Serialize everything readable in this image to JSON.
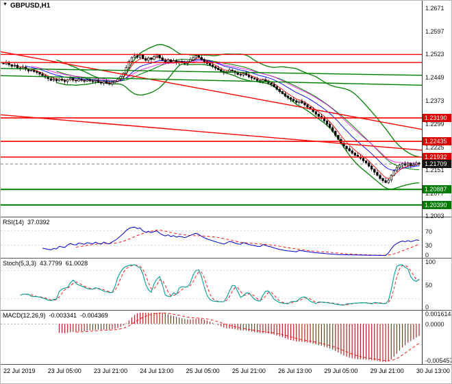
{
  "ui": {
    "symbol_label": "GBPUSD,H1",
    "collapse_icon": "▼"
  },
  "colors": {
    "bands": "#008000",
    "levels_red": "#ff0000",
    "badge_red": "#dd0000",
    "badge_green": "#007a00",
    "badge_black": "#111111",
    "rsi_line": "#0000cc",
    "stoch_line": "#009e96",
    "signal_line": "#ff0000",
    "macd_hist": "#b22222"
  },
  "chart_data": {
    "type": "candlestick",
    "title": "GBPUSD,H1",
    "symbol": "GBPUSD",
    "timeframe": "H1",
    "x_labels": [
      "22 Jul 2019",
      "23 Jul 05:00",
      "23 Jul 21:00",
      "24 Jul 13:00",
      "25 Jul 05:00",
      "25 Jul 21:00",
      "26 Jul 13:00",
      "29 Jul 05:00",
      "29 Jul 21:00",
      "30 Jul 13:00"
    ],
    "price_range": {
      "max": 1.2696,
      "min": 1.1999
    },
    "price_ticks": [
      "1.2671",
      "1.2597",
      "1.2523",
      "1.2449",
      "1.2373",
      "1.2299",
      "1.2225",
      "1.2151",
      "1.2077",
      "1.2003"
    ],
    "closes": [
      1.2493,
      1.2498,
      1.249,
      1.2485,
      1.2488,
      1.248,
      1.2478,
      1.2482,
      1.2475,
      1.247,
      1.2472,
      1.2468,
      1.2465,
      1.246,
      1.2455,
      1.245,
      1.2445,
      1.244,
      1.2443,
      1.2438,
      1.2444,
      1.244,
      1.2436,
      1.2442,
      1.2446,
      1.244,
      1.2438,
      1.2443,
      1.244,
      1.2437,
      1.2441,
      1.2438,
      1.2436,
      1.244,
      1.2434,
      1.2431,
      1.2436,
      1.243,
      1.2428,
      1.2433,
      1.2437,
      1.2443,
      1.2452,
      1.2463,
      1.2481,
      1.2501,
      1.2513,
      1.2519,
      1.2514,
      1.2521,
      1.251,
      1.2504,
      1.2512,
      1.2507,
      1.2516,
      1.2521,
      1.2512,
      1.2504,
      1.2499,
      1.2506,
      1.2498,
      1.2503,
      1.2496,
      1.2501,
      1.2498,
      1.2494,
      1.25,
      1.2506,
      1.2513,
      1.2519,
      1.2514,
      1.2507,
      1.25,
      1.2494,
      1.2489,
      1.2484,
      1.2479,
      1.2474,
      1.2469,
      1.2464,
      1.2468,
      1.2473,
      1.247,
      1.2464,
      1.2459,
      1.2457,
      1.2462,
      1.2457,
      1.2451,
      1.2447,
      1.2444,
      1.2439,
      1.2437,
      1.2442,
      1.2437,
      1.2431,
      1.2427,
      1.2419,
      1.2411,
      1.2404,
      1.2397,
      1.2389,
      1.2384,
      1.2379,
      1.2374,
      1.2369,
      1.2372,
      1.2367,
      1.2361,
      1.2354,
      1.2347,
      1.2339,
      1.2331,
      1.2324,
      1.2317,
      1.2309,
      1.2299,
      1.2288,
      1.2276,
      1.2263,
      1.225,
      1.2238,
      1.2228,
      1.222,
      1.2213,
      1.2206,
      1.2199,
      1.2194,
      1.2189,
      1.2181,
      1.2174,
      1.2164,
      1.2154,
      1.2144,
      1.2134,
      1.2124,
      1.2117,
      1.2111,
      1.2119,
      1.2134,
      1.2149,
      1.2159,
      1.2167,
      1.2172,
      1.2167,
      1.2173,
      1.2165,
      1.2169,
      1.2174,
      1.2171
    ],
    "current_price": 1.21709,
    "price_badges": [
      {
        "value": "1.23190",
        "price": 1.2319,
        "color": "red",
        "current": false
      },
      {
        "value": "1.22435",
        "price": 1.22435,
        "color": "red",
        "current": false
      },
      {
        "value": "1.21932",
        "price": 1.21932,
        "color": "red",
        "current": false
      },
      {
        "value": "1.21709",
        "price": 1.21709,
        "color": "black",
        "current": true
      },
      {
        "value": "1.20887",
        "price": 1.20887,
        "color": "green",
        "current": false
      },
      {
        "value": "1.20390",
        "price": 1.2039,
        "color": "green",
        "current": false
      }
    ],
    "h_lines": [
      {
        "price": 1.2523,
        "color": "red",
        "width": 1.4
      },
      {
        "price": 1.2497,
        "color": "red",
        "width": 1.4
      },
      {
        "price": 1.2319,
        "color": "red",
        "width": 1.6
      },
      {
        "price": 1.22435,
        "color": "red",
        "width": 1.6
      },
      {
        "price": 1.21932,
        "color": "red",
        "width": 1.6
      },
      {
        "price": 1.20887,
        "color": "green",
        "width": 2
      },
      {
        "price": 1.2039,
        "color": "green",
        "width": 2
      }
    ],
    "trend_lines": [
      {
        "p1": 1.2532,
        "p2": 1.2282,
        "color": "red"
      },
      {
        "p1": 1.2329,
        "p2": 1.2215,
        "color": "red"
      },
      {
        "p1": 1.2478,
        "p2": 1.2456,
        "color": "green"
      },
      {
        "p1": 1.2455,
        "p2": 1.2424,
        "color": "green"
      }
    ],
    "indicators": {
      "rsi": {
        "name": "RSI(14)",
        "value": "37.0392",
        "levels": [
          70,
          30
        ],
        "axis_labels": [
          70,
          30,
          0
        ]
      },
      "stoch": {
        "name": "Stoch(5,3,3)",
        "value_k": "43.7799",
        "value_d": "61.0028",
        "levels": [
          80,
          20
        ],
        "axis_labels": [
          100,
          50,
          0
        ]
      },
      "macd": {
        "name": "MACD(12,26,9)",
        "value_main": "-0.003341",
        "value_signal": "-0.004369",
        "range": {
          "max": 0.001614,
          "min": -0.005457
        },
        "axis_labels": [
          "0.001614",
          "0.0000",
          "-0.005457"
        ]
      }
    }
  }
}
